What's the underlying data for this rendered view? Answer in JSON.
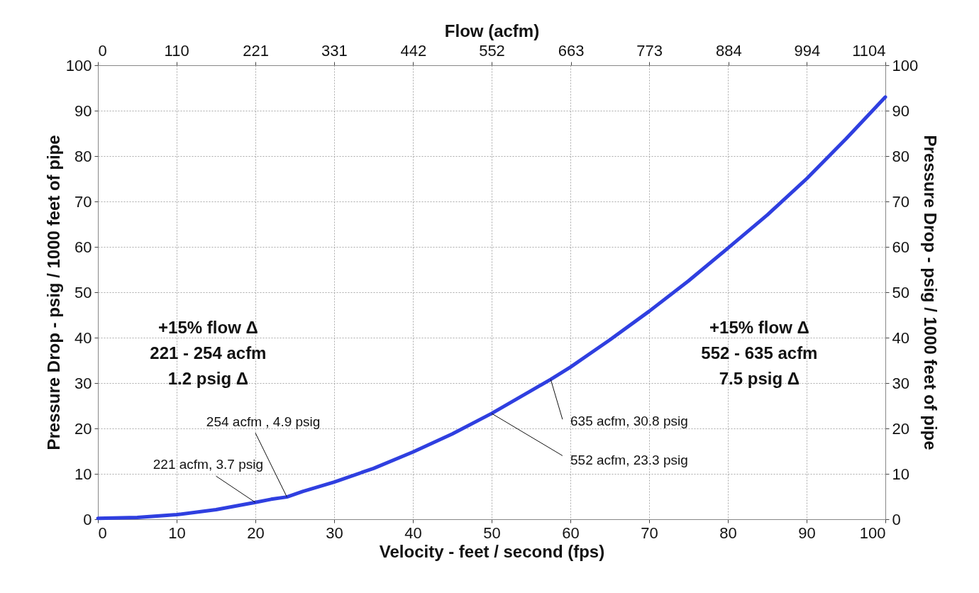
{
  "chart_data": {
    "type": "line",
    "xlabel": "Velocity - feet / second (fps)",
    "ylabel": "Pressure Drop - psig / 1000 feet of pipe",
    "y2label": "Pressure Drop - psig / 1000 feet of pipe",
    "x2label": "Flow (acfm)",
    "x": [
      0,
      5,
      10,
      15,
      20,
      22,
      24,
      26,
      30,
      35,
      40,
      45,
      50,
      55,
      57.5,
      60,
      65,
      70,
      75,
      80,
      85,
      90,
      95,
      100
    ],
    "series": [
      {
        "color": "#2f3fe0",
        "values": [
          0.2,
          0.4,
          1.0,
          2.1,
          3.7,
          4.4,
          4.9,
          6.1,
          8.2,
          11.2,
          14.8,
          18.8,
          23.3,
          28.3,
          30.8,
          33.5,
          39.5,
          45.8,
          52.5,
          59.7,
          67.0,
          75.0,
          83.8,
          93.0
        ]
      }
    ],
    "xlim": [
      0,
      100
    ],
    "xticks": [
      0,
      10,
      20,
      30,
      40,
      50,
      60,
      70,
      80,
      90,
      100
    ],
    "ylim": [
      0,
      100
    ],
    "yticks": [
      0,
      10,
      20,
      30,
      40,
      50,
      60,
      70,
      80,
      90,
      100
    ],
    "y2lim": [
      0,
      100
    ],
    "y2ticks": [
      0,
      10,
      20,
      30,
      40,
      50,
      60,
      70,
      80,
      90,
      100
    ],
    "x2lim": [
      0,
      1104
    ],
    "x2ticks": [
      0,
      110,
      221,
      331,
      442,
      552,
      663,
      773,
      884,
      994,
      1104
    ],
    "grid": true,
    "line_style": "solid",
    "marker": "none",
    "annotations": [
      "+15% flow Δ\n221 - 254 acfm\n1.2 psig Δ",
      "+15% flow Δ\n552 - 635 acfm\n7.5 psig Δ",
      {
        "text": "221 acfm, 3.7 psig",
        "x": 20,
        "y": 3.7
      },
      {
        "text": "254 acfm , 4.9 psig",
        "x": 24,
        "y": 4.9
      },
      {
        "text": "635 acfm, 30.8 psig",
        "x": 57.5,
        "y": 30.8
      },
      {
        "text": "552 acfm, 23.3 psig",
        "x": 50,
        "y": 23.3
      }
    ]
  }
}
